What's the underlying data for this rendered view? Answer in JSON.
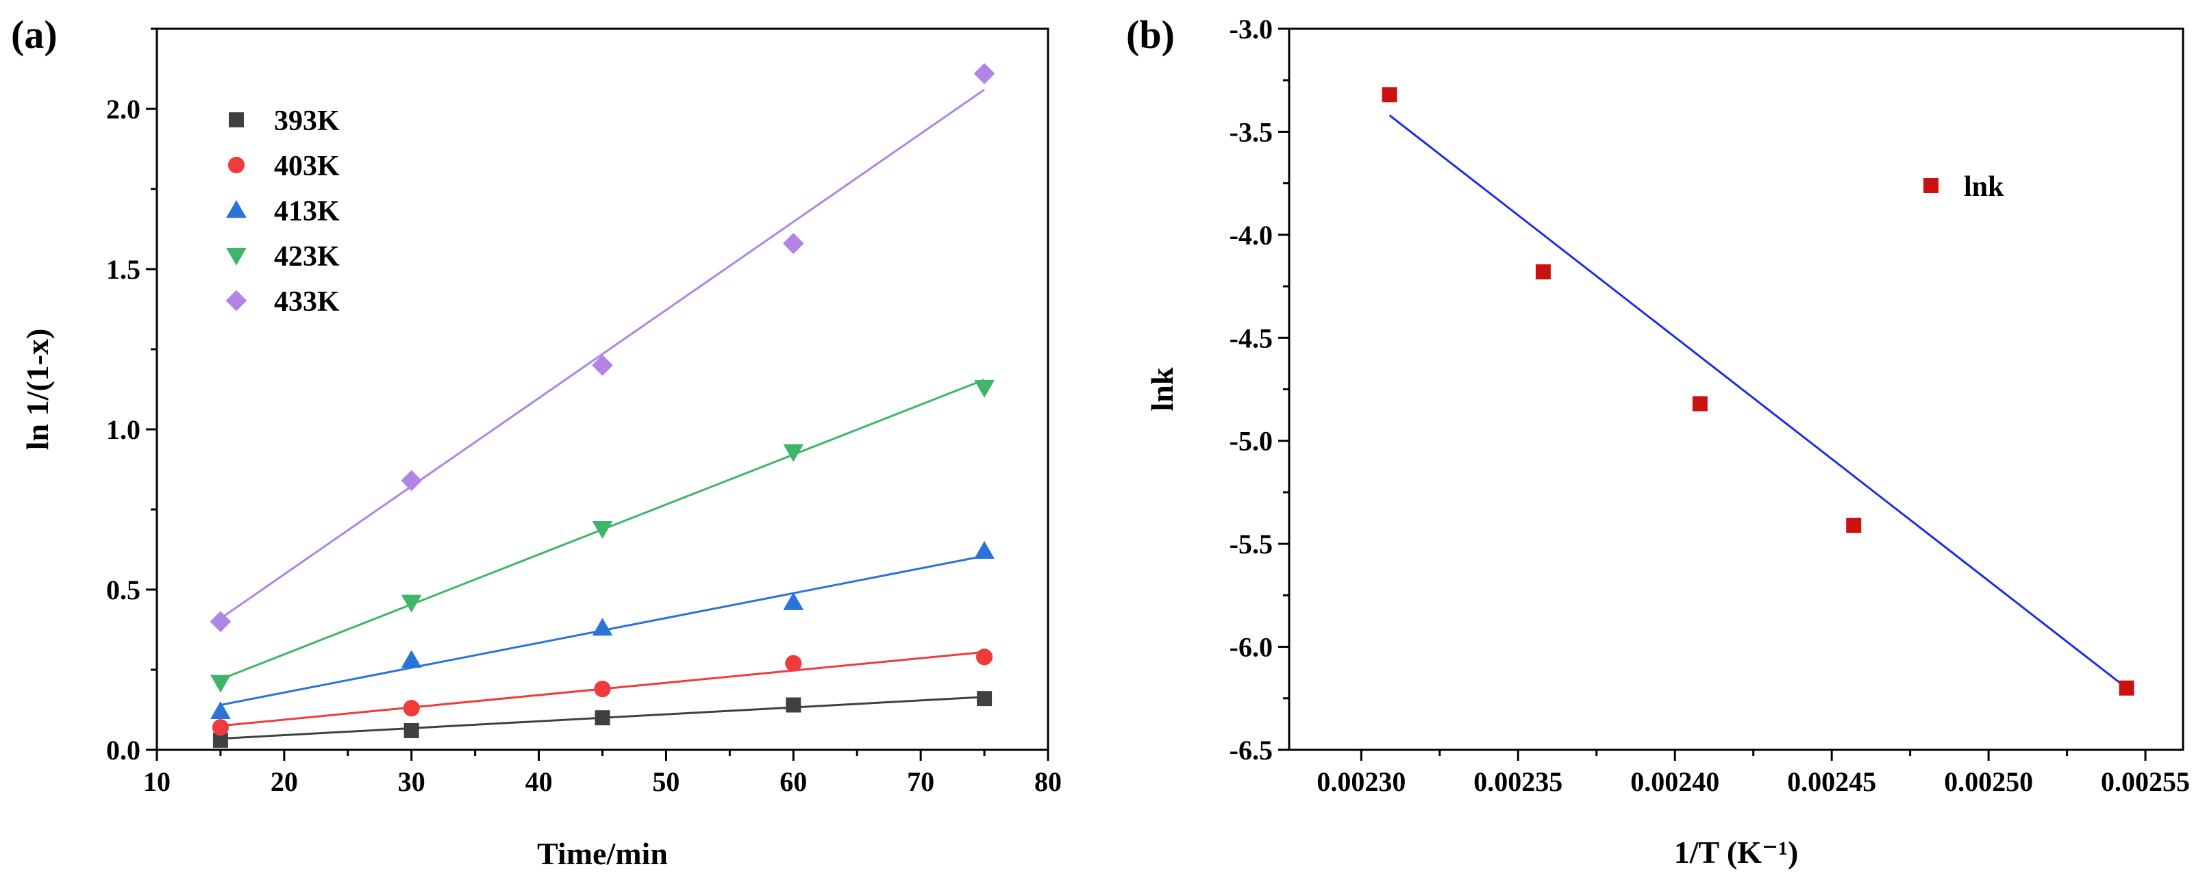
{
  "chart_data": [
    {
      "panel": "(a)",
      "type": "scatter",
      "xlabel": "Time/min",
      "ylabel": "ln 1/(1-x)",
      "xlim": [
        10,
        80
      ],
      "ylim": [
        0,
        2.25
      ],
      "xticks": [
        10,
        20,
        30,
        40,
        50,
        60,
        70,
        80
      ],
      "xtick_labels": [
        "10",
        "20",
        "30",
        "40",
        "50",
        "60",
        "70",
        "80"
      ],
      "yticks": [
        0,
        0.5,
        1.0,
        1.5,
        2.0
      ],
      "ytick_labels": [
        "0.0",
        "0.5",
        "1.0",
        "1.5",
        "2.0"
      ],
      "legend_position": "top-left",
      "series": [
        {
          "name": "393K",
          "marker": "square",
          "color": "#404040",
          "x": [
            15,
            30,
            45,
            60,
            75
          ],
          "y": [
            0.03,
            0.06,
            0.1,
            0.14,
            0.16
          ],
          "fit": {
            "x": [
              15,
              75
            ],
            "y": [
              0.035,
              0.165
            ]
          }
        },
        {
          "name": "403K",
          "marker": "circle",
          "color": "#ef3b3b",
          "x": [
            15,
            30,
            45,
            60,
            75
          ],
          "y": [
            0.07,
            0.13,
            0.19,
            0.27,
            0.29
          ],
          "fit": {
            "x": [
              15,
              75
            ],
            "y": [
              0.075,
              0.305
            ]
          }
        },
        {
          "name": "413K",
          "marker": "triangle-up",
          "color": "#2a73d9",
          "x": [
            15,
            30,
            45,
            60,
            75
          ],
          "y": [
            0.12,
            0.28,
            0.38,
            0.46,
            0.62
          ],
          "fit": {
            "x": [
              15,
              75
            ],
            "y": [
              0.14,
              0.605
            ]
          }
        },
        {
          "name": "423K",
          "marker": "triangle-down",
          "color": "#3fb56a",
          "x": [
            15,
            30,
            45,
            60,
            75
          ],
          "y": [
            0.21,
            0.46,
            0.69,
            0.93,
            1.13
          ],
          "fit": {
            "x": [
              15,
              75
            ],
            "y": [
              0.22,
              1.155
            ]
          }
        },
        {
          "name": "433K",
          "marker": "diamond",
          "color": "#b185e6",
          "x": [
            15,
            30,
            45,
            60,
            75
          ],
          "y": [
            0.4,
            0.84,
            1.2,
            1.58,
            2.11
          ],
          "fit": {
            "x": [
              15,
              75
            ],
            "y": [
              0.41,
              2.06
            ]
          }
        }
      ]
    },
    {
      "panel": "(b)",
      "type": "scatter",
      "xlabel": "1/T (K⁻¹)",
      "ylabel": "lnk",
      "xlim": [
        0.002277,
        0.002562
      ],
      "ylim": [
        -6.5,
        -3.0
      ],
      "xticks": [
        0.0023,
        0.00235,
        0.0024,
        0.00245,
        0.0025,
        0.00255
      ],
      "xtick_labels": [
        "0.00230",
        "0.00235",
        "0.00240",
        "0.00245",
        "0.00250",
        "0.00255"
      ],
      "yticks": [
        -6.5,
        -6.0,
        -5.5,
        -5.0,
        -4.5,
        -4.0,
        -3.5,
        -3.0
      ],
      "ytick_labels": [
        "-6.5",
        "-6.0",
        "-5.5",
        "-5.0",
        "-4.5",
        "-4.0",
        "-3.5",
        "-3.0"
      ],
      "legend_position": "top-right",
      "series": [
        {
          "name": "lnk",
          "marker": "square",
          "color": "#cc1111",
          "x": [
            0.002309,
            0.002358,
            0.002408,
            0.002457,
            0.002544
          ],
          "y": [
            -3.32,
            -4.18,
            -4.82,
            -5.41,
            -6.2
          ],
          "fit": {
            "x": [
              0.002309,
              0.002544
            ],
            "y": [
              -3.42,
              -6.2
            ],
            "color": "#1f2fe0"
          }
        }
      ]
    }
  ]
}
